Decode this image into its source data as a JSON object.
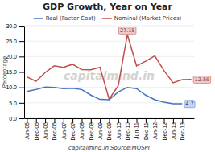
{
  "chart_data": {
    "type": "line",
    "title": "GDP Growth, Year on Year",
    "x_label": "capitalmind.in Source:MOSPI",
    "y_label": "Percentage",
    "categories": [
      "Jun-05",
      "Dec-05",
      "Jun-06",
      "Dec-06",
      "Jun-07",
      "Dec-07",
      "Jun-08",
      "Dec-08",
      "Jun-09",
      "Dec-09",
      "Jun-10",
      "Dec-10",
      "Jun-11",
      "Dec-11",
      "Jun-12",
      "Dec-12",
      "Jun-13",
      "Dec-13",
      null
    ],
    "series": [
      {
        "name": "Real (Factor Cost)",
        "color": "#4472c4",
        "values": [
          8.7,
          9.3,
          10.1,
          10.0,
          9.6,
          9.7,
          9.3,
          7.5,
          6.1,
          6.0,
          8.5,
          10.0,
          9.6,
          7.5,
          6.0,
          5.2,
          4.7,
          4.7,
          null
        ]
      },
      {
        "name": "Nominal (Market Prices)",
        "color": "#c0504d",
        "values": [
          13.4,
          12.0,
          14.8,
          17.0,
          16.5,
          17.5,
          15.8,
          15.7,
          16.5,
          6.2,
          10.5,
          27.15,
          17.0,
          18.5,
          20.2,
          15.5,
          11.5,
          12.5,
          12.59
        ]
      }
    ],
    "annotations": [
      {
        "text": "27.15",
        "x": 11,
        "y": 27.15
      },
      {
        "text": "12.59",
        "x": 18,
        "y": 12.59
      },
      {
        "text": "4.7",
        "x": 17,
        "y": 4.7
      },
      {
        "text": "capitalmind.in"
      }
    ],
    "ylim": [
      0.0,
      30.0
    ],
    "yticks": [
      {
        "value": 0,
        "label": "0.0"
      },
      {
        "value": 5,
        "label": "5.0"
      },
      {
        "value": 10,
        "label": "10.0"
      },
      {
        "value": 15,
        "label": "15.0"
      },
      {
        "value": 20,
        "label": "20.0"
      },
      {
        "value": 25,
        "label": "25.0"
      },
      {
        "value": 30,
        "label": "30.0"
      }
    ],
    "grid": true,
    "legend": "top"
  }
}
